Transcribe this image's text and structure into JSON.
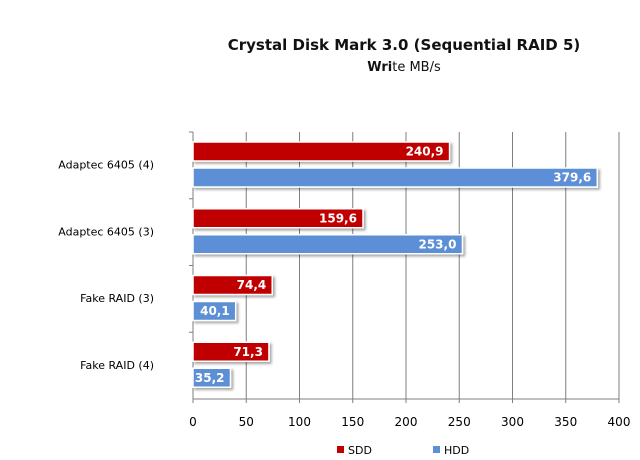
{
  "chart_data": {
    "type": "bar",
    "orientation": "horizontal",
    "title": "Crystal Disk Mark 3.0 (Sequential RAID 5)",
    "subtitle_bold": "Wri",
    "subtitle_rest": "te MB/s",
    "categories": [
      "Adaptec 6405 (4)",
      "Adaptec 6405 (3)",
      "Fake RAID (3)",
      "Fake RAID (4)"
    ],
    "series": [
      {
        "name": "SDD",
        "values": [
          240.9,
          159.6,
          74.4,
          71.3
        ],
        "labels": [
          "240,9",
          "159,6",
          "74,4",
          "71,3"
        ],
        "color": "#c00000"
      },
      {
        "name": "HDD",
        "values": [
          379.6,
          253.0,
          40.1,
          35.2
        ],
        "labels": [
          "379,6",
          "253,0",
          "40,1",
          "35,2"
        ],
        "color": "#5b8fd6"
      }
    ],
    "xlim": [
      0,
      400
    ],
    "xticks": [
      "0",
      "50",
      "100",
      "150",
      "200",
      "250",
      "300",
      "350",
      "400"
    ],
    "grid": true,
    "legend_position": "bottom"
  }
}
